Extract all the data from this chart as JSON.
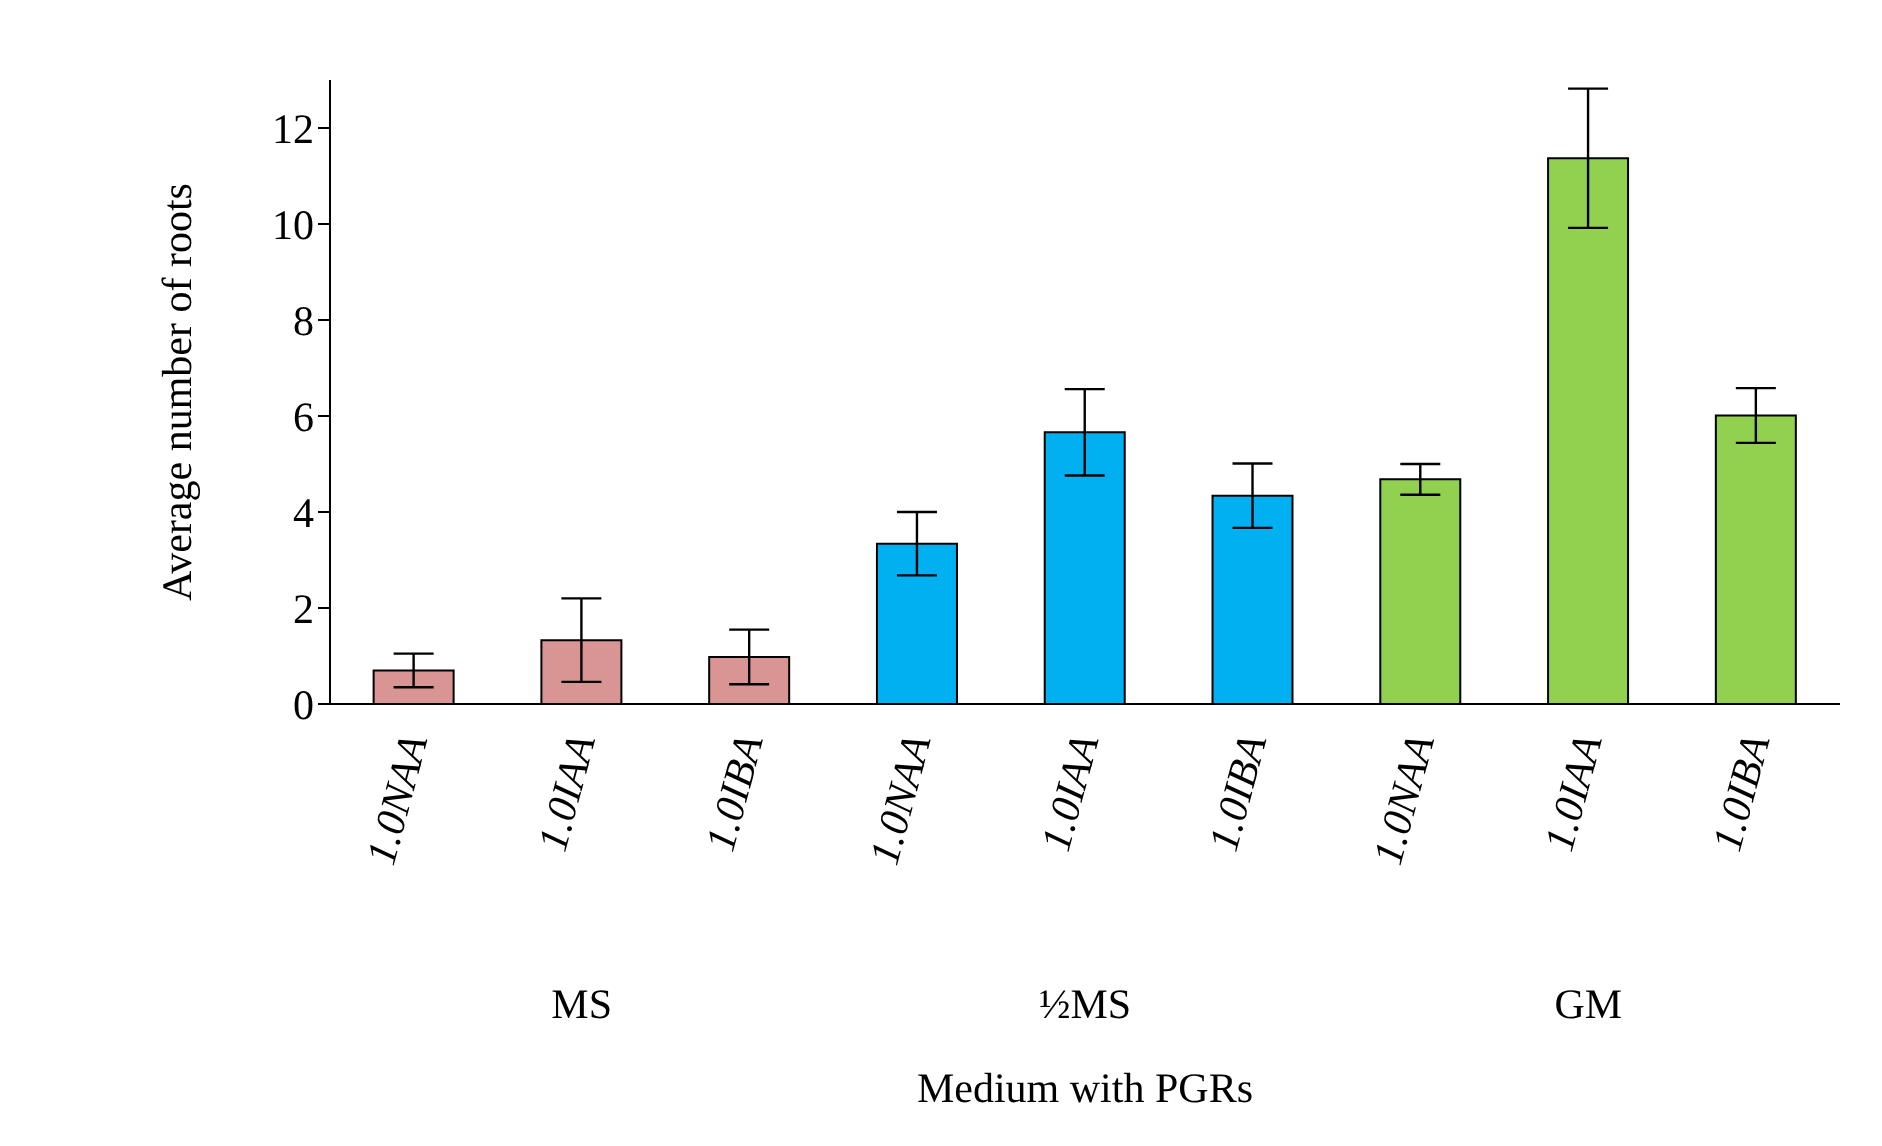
{
  "chart_data": {
    "type": "bar",
    "xlabel": "Medium with PGRs",
    "ylabel": "Average number of roots",
    "categories": [
      "1.0NAA",
      "1.0IAA",
      "1.0IBA",
      "1.0NAA",
      "1.0IAA",
      "1.0IBA",
      "1.0NAA",
      "1.0IAA",
      "1.0IBA"
    ],
    "values": [
      0.7,
      1.33,
      0.98,
      3.34,
      5.66,
      4.34,
      4.68,
      11.37,
      6.01
    ],
    "errors": [
      0.35,
      0.87,
      0.57,
      0.66,
      0.9,
      0.67,
      0.32,
      1.45,
      0.57
    ],
    "colors": [
      "#d99594",
      "#d99594",
      "#d99594",
      "#00b0f0",
      "#00b0f0",
      "#00b0f0",
      "#92d050",
      "#92d050",
      "#92d050"
    ],
    "ylim": [
      0,
      13
    ],
    "yticks": [
      0,
      2,
      4,
      6,
      8,
      10,
      12
    ],
    "annotations": [
      "MS",
      "½MS",
      "GM"
    ]
  }
}
